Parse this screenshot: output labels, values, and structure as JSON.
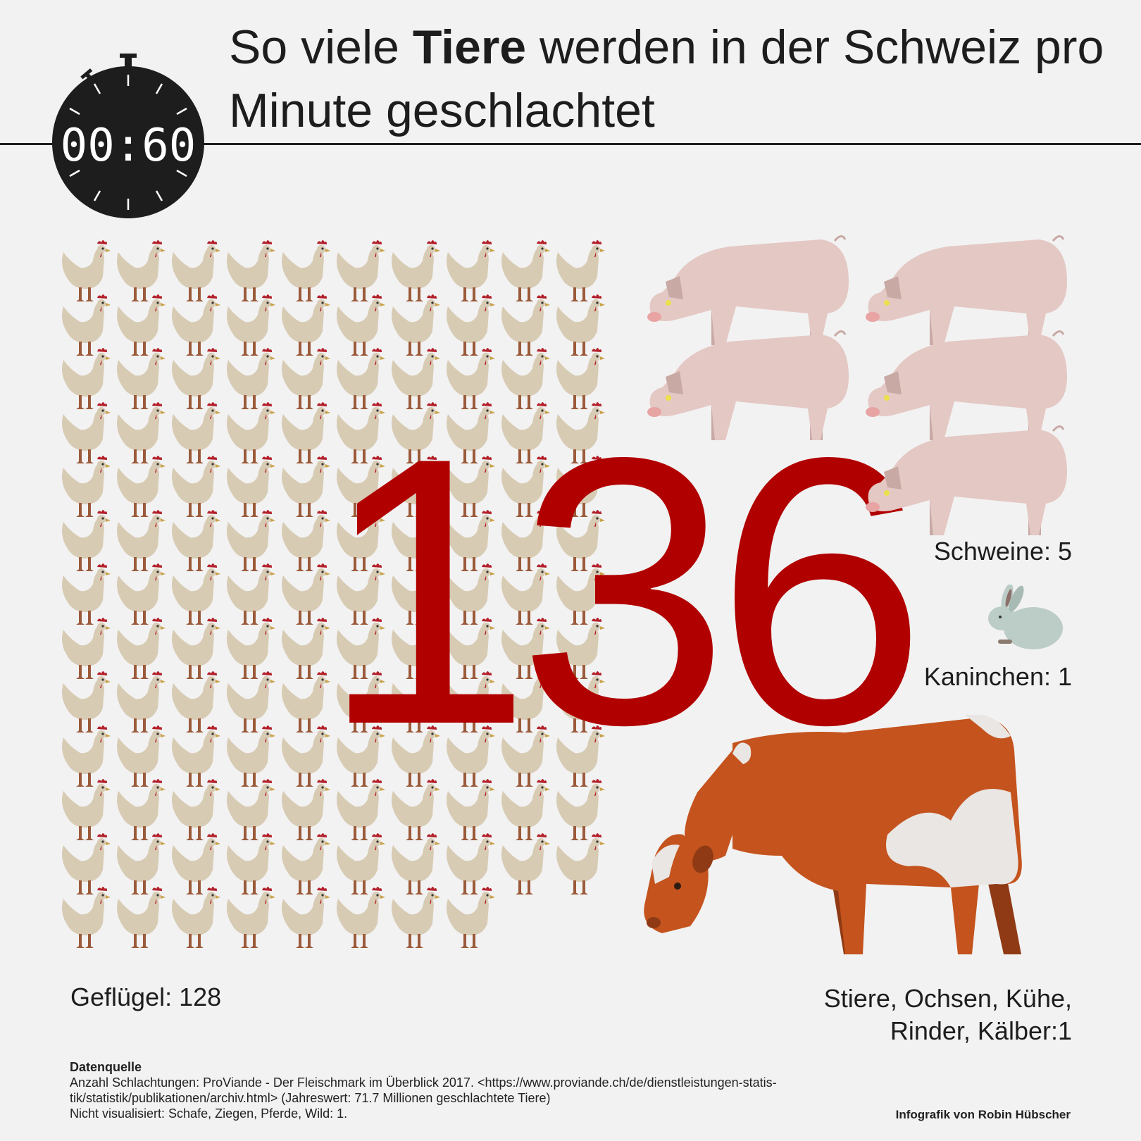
{
  "title": {
    "before": "So viele ",
    "bold": "Tiere",
    "after": " werden in der Schweiz pro Minute geschlachtet"
  },
  "stopwatch": {
    "display": "00:60"
  },
  "total": "136",
  "categories": [
    {
      "id": "poultry",
      "label": "Geflügel: 128",
      "count": 128,
      "icon": "chicken-icon"
    },
    {
      "id": "pigs",
      "label": "Schweine: 5",
      "count": 5,
      "icon": "pig-icon"
    },
    {
      "id": "rabbits",
      "label": "Kaninchen: 1",
      "count": 1,
      "icon": "rabbit-icon"
    },
    {
      "id": "cattle",
      "label_line1": "Stiere, Ochsen, Kühe,",
      "label_line2": "Rinder, Kälber:1",
      "count": 1,
      "icon": "cow-icon"
    }
  ],
  "colors": {
    "number": "#b10000",
    "chicken": "#d8cbb4",
    "pig": "#e4c8c4",
    "rabbit": "#bccdc8",
    "cow": "#c4531d",
    "background": "#f2f2f2"
  },
  "source": {
    "heading": "Datenquelle",
    "line1": "Anzahl Schlachtungen: ProViande - Der Fleischmark im Überblick 2017. <https://www.proviande.ch/de/dienstleistungen-statis-",
    "line2": "tik/statistik/publikationen/archiv.html> (Jahreswert: 71.7 Millionen geschlachtete Tiere)",
    "line3": "Nicht visualisiert: Schafe, Ziegen, Pferde, Wild: 1."
  },
  "credit": "Infografik von Robin Hübscher"
}
